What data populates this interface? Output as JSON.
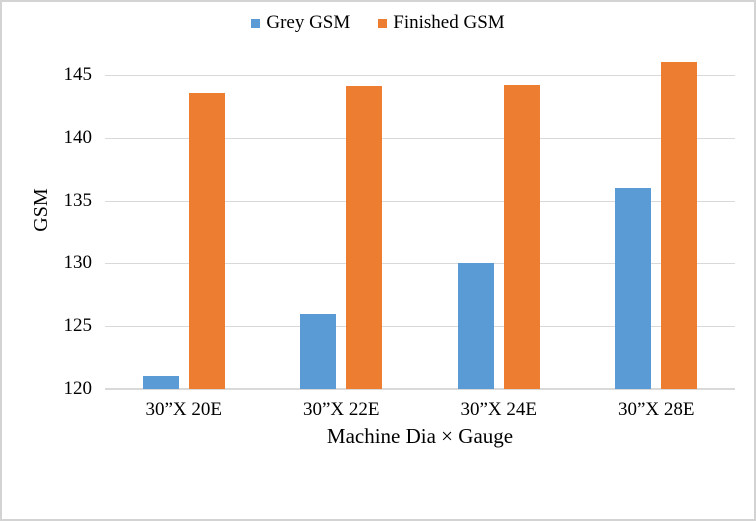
{
  "chart_data": {
    "type": "bar",
    "title": "",
    "categories": [
      "30”X 20E",
      "30”X 22E",
      "30”X 24E",
      "30”X 28E"
    ],
    "series": [
      {
        "name": "Grey GSM",
        "color": "#5B9BD5",
        "values": [
          121,
          126,
          130,
          136
        ]
      },
      {
        "name": "Finished GSM",
        "color": "#ED7D31",
        "values": [
          143.6,
          144.1,
          144.2,
          146
        ]
      }
    ],
    "xlabel": "Machine Dia × Gauge",
    "ylabel": "GSM",
    "ylim": [
      120,
      147
    ],
    "yticks": [
      120,
      125,
      130,
      135,
      140,
      145
    ],
    "grid": true,
    "legend_position": "top"
  },
  "colors": {
    "gridline": "#D9D9D9",
    "axis_line": "#D9D9D9",
    "frame_border": "#D3D3D3",
    "text": "#000000"
  }
}
